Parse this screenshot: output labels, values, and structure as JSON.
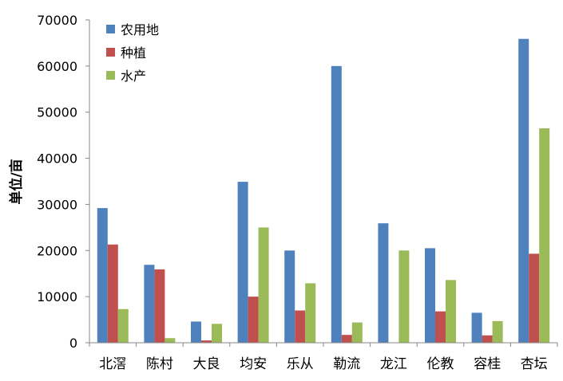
{
  "chart_data": {
    "type": "bar",
    "title": "",
    "xlabel": "",
    "ylabel": "单位/亩",
    "ylim": [
      0,
      70000
    ],
    "yticks": [
      0,
      10000,
      20000,
      30000,
      40000,
      50000,
      60000,
      70000
    ],
    "grid": false,
    "legend_position": "top-left",
    "categories": [
      "北滘",
      "陈村",
      "大良",
      "均安",
      "乐从",
      "勒流",
      "龙江",
      "伦教",
      "容桂",
      "杏坛"
    ],
    "series": [
      {
        "name": "农用地",
        "color": "#4F81BD",
        "values": [
          29200,
          16900,
          4600,
          34900,
          20000,
          60000,
          25900,
          20500,
          6500,
          65900
        ]
      },
      {
        "name": "种植",
        "color": "#C0504D",
        "values": [
          21300,
          15900,
          500,
          10000,
          7000,
          1700,
          0,
          6800,
          1600,
          19300
        ]
      },
      {
        "name": "水产",
        "color": "#9BBB59",
        "values": [
          7300,
          1000,
          4100,
          25000,
          12900,
          4400,
          20000,
          13600,
          4700,
          46500
        ]
      }
    ]
  }
}
